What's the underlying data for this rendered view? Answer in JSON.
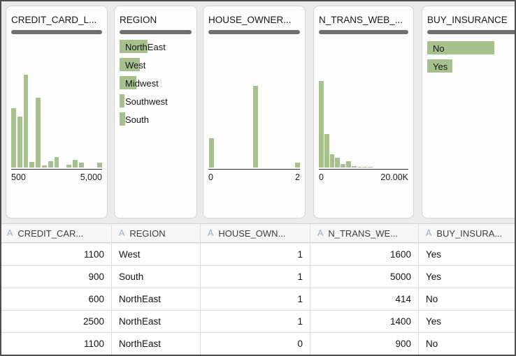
{
  "colors": {
    "background": "#ebebeb",
    "bar_green": "#a7c18e",
    "quality_bar_gray": "#6f6f72",
    "type_icon_blue": "#8fb0d4"
  },
  "cards": [
    {
      "id": "credit-card-limit",
      "title": "CREDIT_CARD_L...",
      "chart": {
        "type": "histogram",
        "x_ticks": [
          "500",
          "5,000"
        ],
        "values": [
          0.64,
          0.55,
          1.0,
          0.06,
          0.75,
          0.02,
          0.07,
          0.11,
          0,
          0.03,
          0.08,
          0.05,
          0,
          0,
          0.05
        ]
      }
    },
    {
      "id": "region",
      "title": "REGION",
      "chart": {
        "type": "category",
        "items": [
          {
            "label": "NorthEast",
            "value": 1.0
          },
          {
            "label": "West",
            "value": 0.72
          },
          {
            "label": "Midwest",
            "value": 0.6
          },
          {
            "label": "Southwest",
            "value": 0.17
          },
          {
            "label": "South",
            "value": 0.2
          }
        ]
      }
    },
    {
      "id": "house-ownership",
      "title": "HOUSE_OWNER...",
      "chart": {
        "type": "histogram",
        "x_ticks": [
          "0",
          "2"
        ],
        "values": [
          0.36,
          1.0,
          0.06
        ],
        "positions": [
          0.01,
          0.49,
          0.95
        ]
      }
    },
    {
      "id": "n-trans-web",
      "title": "N_TRANS_WEB_...",
      "chart": {
        "type": "histogram",
        "x_ticks": [
          "0",
          "20.00K"
        ],
        "values": [
          1.0,
          0.39,
          0.15,
          0.11,
          0.04,
          0.07,
          0.018,
          0.012,
          0.01,
          0.008
        ]
      }
    },
    {
      "id": "buy-insurance",
      "title": "BUY_INSURANCE",
      "chart": {
        "type": "category",
        "items": [
          {
            "label": "No",
            "value": 1.0
          },
          {
            "label": "Yes",
            "value": 0.375
          }
        ]
      }
    }
  ],
  "table": {
    "columns": [
      {
        "type_icon": "A",
        "label": "CREDIT_CAR...",
        "align": "right"
      },
      {
        "type_icon": "A",
        "label": "REGION",
        "align": "left"
      },
      {
        "type_icon": "A",
        "label": "HOUSE_OWN...",
        "align": "right"
      },
      {
        "type_icon": "A",
        "label": "N_TRANS_WE...",
        "align": "right"
      },
      {
        "type_icon": "A",
        "label": "BUY_INSURA...",
        "align": "left"
      }
    ],
    "rows": [
      [
        "1100",
        "West",
        "1",
        "1600",
        "Yes"
      ],
      [
        "900",
        "South",
        "1",
        "5000",
        "Yes"
      ],
      [
        "600",
        "NorthEast",
        "1",
        "414",
        "No"
      ],
      [
        "2500",
        "NorthEast",
        "1",
        "1400",
        "Yes"
      ],
      [
        "1100",
        "NorthEast",
        "0",
        "900",
        "No"
      ]
    ]
  }
}
